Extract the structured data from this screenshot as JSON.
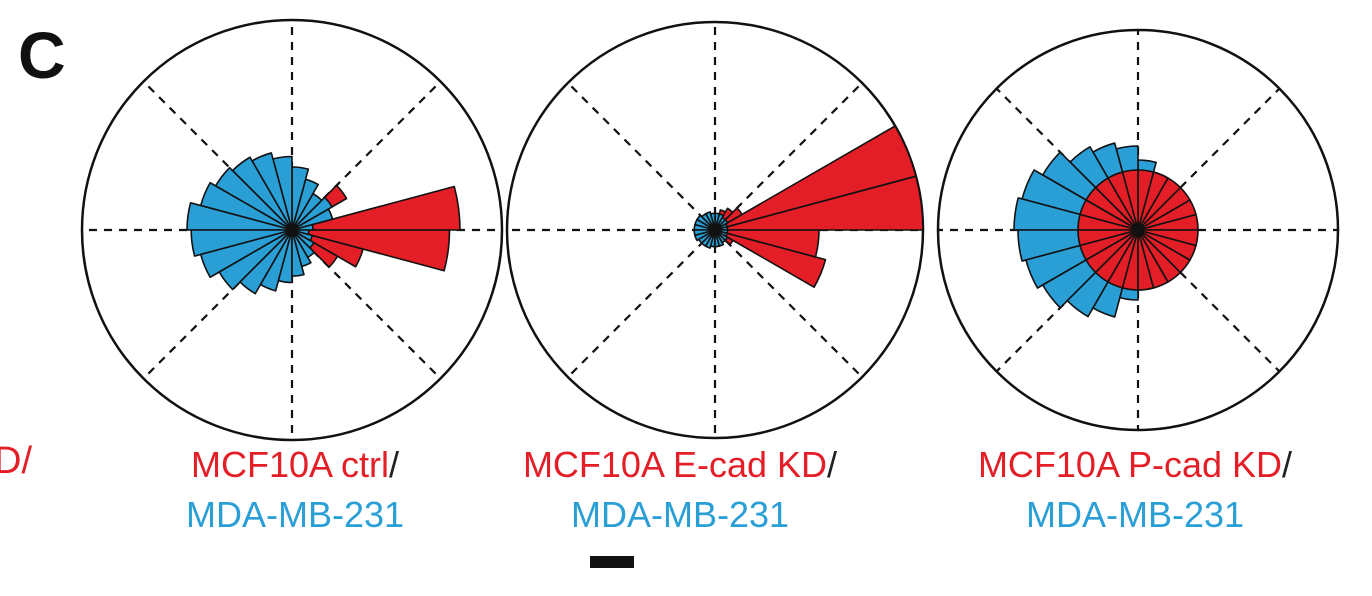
{
  "panel_letter": "C",
  "clipped_left_text": "D/",
  "colors": {
    "red": "#e31e26",
    "blue": "#2a9fd6",
    "outline": "#111111",
    "grid": "#111111"
  },
  "chart_data": [
    {
      "type": "rose",
      "caption_line1": "MCF10A ctrl",
      "caption_slash": "/",
      "caption_line2": "MDA-MB-231",
      "grid": true,
      "bin_count": 24,
      "rmax": 1.0,
      "series": [
        {
          "color": "red",
          "values": [
            0.8,
            0.2,
            0.3,
            0.15,
            0.12,
            0.1,
            0.08,
            0.08,
            0.08,
            0.08,
            0.08,
            0.08,
            0.08,
            0.08,
            0.08,
            0.08,
            0.08,
            0.08,
            0.08,
            0.1,
            0.12,
            0.25,
            0.35,
            0.75
          ]
        },
        {
          "color": "blue",
          "values": [
            0.1,
            0.2,
            0.22,
            0.2,
            0.25,
            0.3,
            0.35,
            0.38,
            0.4,
            0.42,
            0.45,
            0.5,
            0.48,
            0.45,
            0.4,
            0.35,
            0.3,
            0.25,
            0.22,
            0.18,
            0.15,
            0.12,
            0.1,
            0.08
          ]
        }
      ]
    },
    {
      "type": "rose",
      "caption_line1": "MCF10A E-cad KD",
      "caption_slash": "/",
      "caption_line2": "MDA-MB-231",
      "grid": true,
      "bin_count": 24,
      "rmax": 1.0,
      "series": [
        {
          "color": "red",
          "values": [
            1.0,
            1.0,
            0.15,
            0.12,
            0.1,
            0.06,
            0.05,
            0.05,
            0.05,
            0.05,
            0.05,
            0.05,
            0.05,
            0.05,
            0.05,
            0.05,
            0.05,
            0.05,
            0.05,
            0.05,
            0.06,
            0.1,
            0.55,
            0.5
          ]
        },
        {
          "color": "blue",
          "values": [
            0.06,
            0.06,
            0.07,
            0.07,
            0.08,
            0.08,
            0.08,
            0.09,
            0.09,
            0.1,
            0.1,
            0.1,
            0.1,
            0.1,
            0.09,
            0.09,
            0.09,
            0.08,
            0.08,
            0.08,
            0.07,
            0.07,
            0.06,
            0.06
          ]
        }
      ]
    },
    {
      "type": "rose",
      "caption_line1": "MCF10A P-cad KD",
      "caption_slash": "/",
      "caption_line2": "MDA-MB-231",
      "grid": true,
      "bin_count": 24,
      "rmax": 1.0,
      "series": [
        {
          "color": "blue",
          "values": [
            0.1,
            0.12,
            0.15,
            0.2,
            0.3,
            0.35,
            0.42,
            0.45,
            0.48,
            0.55,
            0.6,
            0.62,
            0.6,
            0.58,
            0.55,
            0.5,
            0.45,
            0.35,
            0.3,
            0.25,
            0.2,
            0.15,
            0.12,
            0.1
          ]
        },
        {
          "color": "red",
          "values": [
            0.3,
            0.3,
            0.3,
            0.3,
            0.3,
            0.3,
            0.3,
            0.3,
            0.3,
            0.3,
            0.3,
            0.3,
            0.3,
            0.3,
            0.3,
            0.3,
            0.3,
            0.3,
            0.3,
            0.3,
            0.3,
            0.3,
            0.3,
            0.3
          ]
        }
      ]
    }
  ]
}
